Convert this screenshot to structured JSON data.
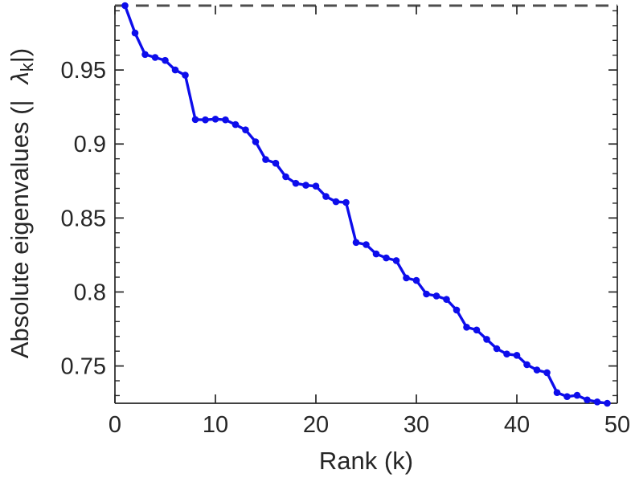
{
  "figure": {
    "xlabel": "Rank (k)",
    "ylabel_prefix": "Absolute eigenvalues (|",
    "ylabel_lambda": "λ",
    "ylabel_subscript": "k",
    "ylabel_suffix": "|)"
  },
  "chart_data": {
    "type": "line",
    "title": "",
    "xlabel": "Rank (k)",
    "ylabel": "Absolute eigenvalues (|λ_k|)",
    "series": [
      {
        "name": "absolute-eigenvalues",
        "x": [
          1,
          2,
          3,
          4,
          5,
          6,
          7,
          8,
          9,
          10,
          11,
          12,
          13,
          14,
          15,
          16,
          17,
          18,
          19,
          20,
          21,
          22,
          23,
          24,
          25,
          26,
          27,
          28,
          29,
          30,
          31,
          32,
          33,
          34,
          35,
          36,
          37,
          38,
          39,
          40,
          41,
          42,
          43,
          44,
          45,
          46,
          47,
          48,
          49
        ],
        "y": [
          0.9935,
          0.975,
          0.9605,
          0.9585,
          0.9565,
          0.95,
          0.9465,
          0.9165,
          0.9163,
          0.9168,
          0.9163,
          0.9131,
          0.9095,
          0.9015,
          0.8895,
          0.887,
          0.8779,
          0.8734,
          0.8721,
          0.8715,
          0.8645,
          0.861,
          0.8605,
          0.8335,
          0.832,
          0.8257,
          0.823,
          0.8212,
          0.8095,
          0.8078,
          0.7986,
          0.7973,
          0.795,
          0.7878,
          0.7762,
          0.7743,
          0.768,
          0.7617,
          0.7581,
          0.7572,
          0.7509,
          0.7473,
          0.7455,
          0.732,
          0.7293,
          0.7302,
          0.7271,
          0.7257,
          0.7248
        ]
      }
    ],
    "xlim": [
      0,
      50
    ],
    "ylim": [
      0.7248,
      0.9935
    ],
    "x_ticks": [
      0,
      10,
      20,
      30,
      40,
      50
    ],
    "x_tick_labels": [
      "0",
      "10",
      "20",
      "30",
      "40",
      "50"
    ],
    "y_ticks": [
      0.95,
      0.9,
      0.85,
      0.8,
      0.75
    ],
    "y_tick_labels": [
      "0.95",
      "0.9",
      "0.85",
      "0.8",
      "0.75"
    ],
    "y_minor_tick_step": 0.01,
    "reference_line": {
      "y": 0.9935,
      "style": "dashed",
      "color": "#4d4d4d"
    },
    "line_color": "#0d0deb",
    "marker": "filled-circle",
    "axis_color": "#262626",
    "tick_label_color": "#262626",
    "grid": false,
    "legend": null
  }
}
